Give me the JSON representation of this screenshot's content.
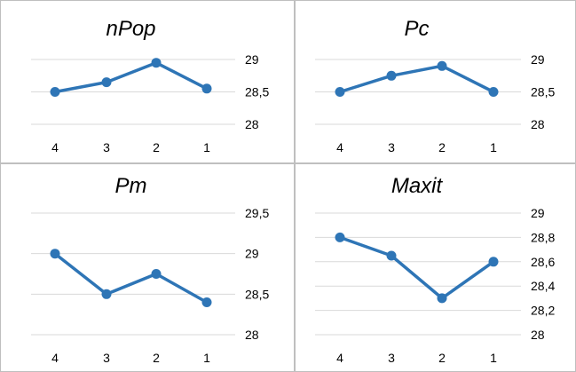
{
  "chart_data": [
    {
      "type": "line",
      "title": "nPop",
      "categories": [
        "4",
        "3",
        "2",
        "1"
      ],
      "values": [
        28.5,
        28.65,
        28.95,
        28.55
      ],
      "yticks": [
        "29",
        "28,5",
        "28"
      ],
      "ylim": [
        28,
        29
      ],
      "grid": true,
      "color": "#2e75b6"
    },
    {
      "type": "line",
      "title": "Pc",
      "categories": [
        "4",
        "3",
        "2",
        "1"
      ],
      "values": [
        28.5,
        28.75,
        28.9,
        28.5
      ],
      "yticks": [
        "29",
        "28,5",
        "28"
      ],
      "ylim": [
        28,
        29
      ],
      "grid": true,
      "color": "#2e75b6"
    },
    {
      "type": "line",
      "title": "Pm",
      "categories": [
        "4",
        "3",
        "2",
        "1"
      ],
      "values": [
        29.0,
        28.5,
        28.75,
        28.4
      ],
      "yticks": [
        "29,5",
        "29",
        "28,5",
        "28"
      ],
      "ylim": [
        28,
        29.5
      ],
      "grid": true,
      "color": "#2e75b6"
    },
    {
      "type": "line",
      "title": "Maxit",
      "categories": [
        "4",
        "3",
        "2",
        "1"
      ],
      "values": [
        28.8,
        28.65,
        28.3,
        28.6
      ],
      "yticks": [
        "29",
        "28,8",
        "28,6",
        "28,4",
        "28,2",
        "28"
      ],
      "ylim": [
        28,
        29
      ],
      "grid": true,
      "color": "#2e75b6"
    }
  ]
}
